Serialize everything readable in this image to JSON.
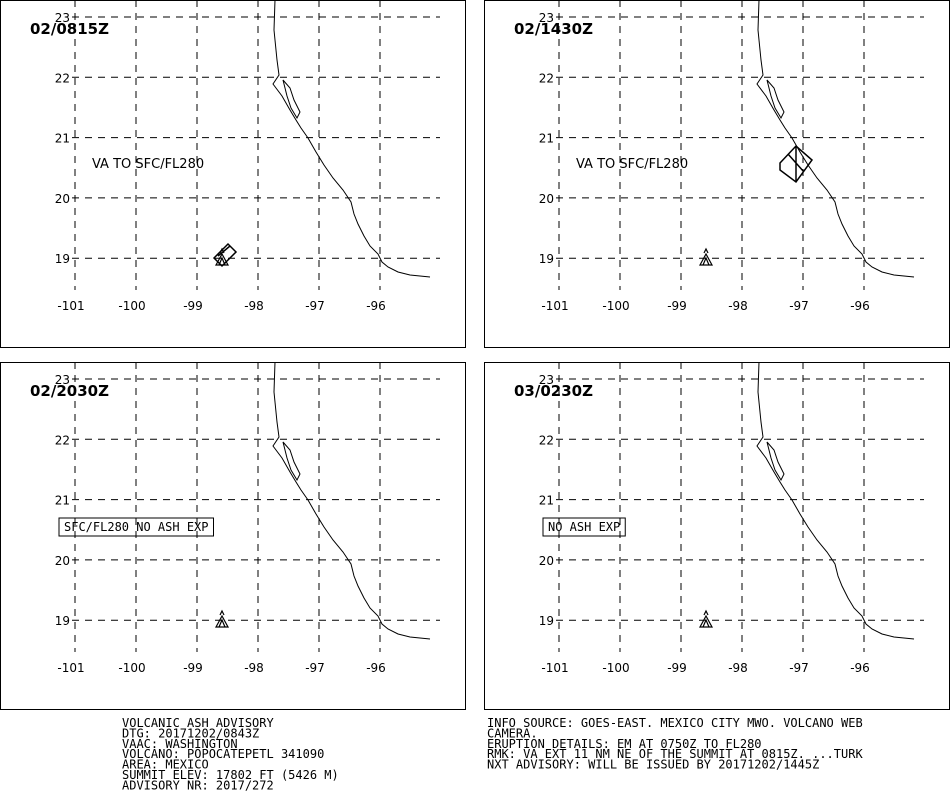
{
  "panels": [
    {
      "time": "02/0815Z",
      "label": "VA TO SFC/FL280"
    },
    {
      "time": "02/1430Z",
      "label": "VA TO SFC/FL280"
    },
    {
      "time": "02/2030Z",
      "label": "SFC/FL280 NO ASH EXP"
    },
    {
      "time": "03/0230Z",
      "label": "NO ASH EXP"
    }
  ],
  "grid": {
    "lats": [
      23,
      22,
      21,
      20,
      19
    ],
    "lons": [
      -101,
      -100,
      -99,
      -98,
      -97,
      -96
    ]
  },
  "footer_left": [
    "VOLCANIC ASH ADVISORY",
    "DTG: 20171202/0843Z",
    "VAAC: WASHINGTON",
    "VOLCANO: POPOCATEPETL 341090",
    "AREA: MEXICO",
    "SUMMIT ELEV: 17802 FT (5426 M)",
    "ADVISORY NR: 2017/272"
  ],
  "footer_right": [
    "INFO SOURCE: GOES-EAST. MEXICO CITY MWO. VOLCANO WEB",
    "CAMERA.",
    "ERUPTION DETAILS: EM AT 0750Z TO FL280",
    "RMK: VA EXT 11 NM NE OF THE SUMMIT AT 0815Z. ...TURK",
    "NXT ADVISORY: WILL BE ISSUED BY 20171202/1445Z"
  ]
}
